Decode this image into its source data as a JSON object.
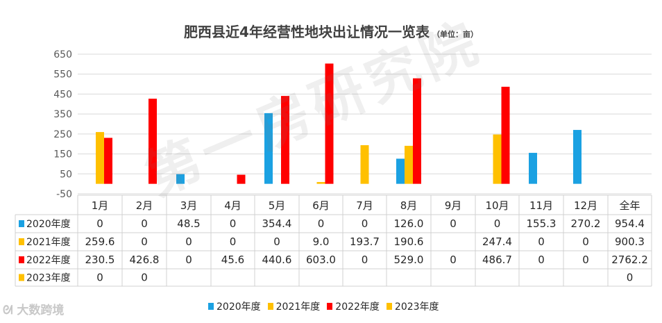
{
  "chart_data": {
    "type": "bar",
    "title": "肥西县近4年经营性地块出让情况一览表",
    "unit": "（单位：亩）",
    "categories": [
      "1月",
      "2月",
      "3月",
      "4月",
      "5月",
      "6月",
      "7月",
      "8月",
      "9月",
      "10月",
      "11月",
      "12月"
    ],
    "table_columns": [
      "1月",
      "2月",
      "3月",
      "4月",
      "5月",
      "6月",
      "7月",
      "8月",
      "9月",
      "10月",
      "11月",
      "12月",
      "全年"
    ],
    "y_ticks": [
      650,
      550,
      450,
      350,
      250,
      150,
      50,
      -50
    ],
    "ylim": [
      -50,
      650
    ],
    "series": [
      {
        "name": "2020年度",
        "color": "#1ba1e2",
        "values": [
          0,
          0,
          48.5,
          0,
          354.4,
          0,
          0,
          126.0,
          0,
          0,
          155.3,
          270.2
        ],
        "cells": [
          "0",
          "0",
          "48.5",
          "0",
          "354.4",
          "0",
          "0",
          "126.0",
          "0",
          "0",
          "155.3",
          "270.2",
          "954.4"
        ]
      },
      {
        "name": "2021年度",
        "color": "#ffc000",
        "values": [
          259.6,
          0,
          0,
          0,
          0,
          9.0,
          193.7,
          190.6,
          null,
          247.4,
          0,
          0
        ],
        "cells": [
          "259.6",
          "0",
          "0",
          "0",
          "0",
          "9.0",
          "193.7",
          "190.6",
          "",
          "247.4",
          "0",
          "0",
          "900.3"
        ]
      },
      {
        "name": "2022年度",
        "color": "#ff0000",
        "values": [
          230.5,
          426.8,
          0,
          45.6,
          440.6,
          603.0,
          0,
          529.0,
          0,
          486.7,
          0,
          0
        ],
        "cells": [
          "230.5",
          "426.8",
          "0",
          "45.6",
          "440.6",
          "603.0",
          "0",
          "529.0",
          "0",
          "486.7",
          "0",
          "0",
          "2762.2"
        ]
      },
      {
        "name": "2023年度",
        "color": "#ffc000",
        "values": [
          0,
          0,
          null,
          null,
          null,
          null,
          null,
          null,
          null,
          null,
          null,
          null
        ],
        "cells": [
          "0",
          "0",
          "",
          "",
          "",
          "",
          "",
          "",
          "",
          "",
          "",
          "",
          "0"
        ]
      }
    ]
  },
  "watermark": "第一房研究院",
  "logo": "大数跨境"
}
